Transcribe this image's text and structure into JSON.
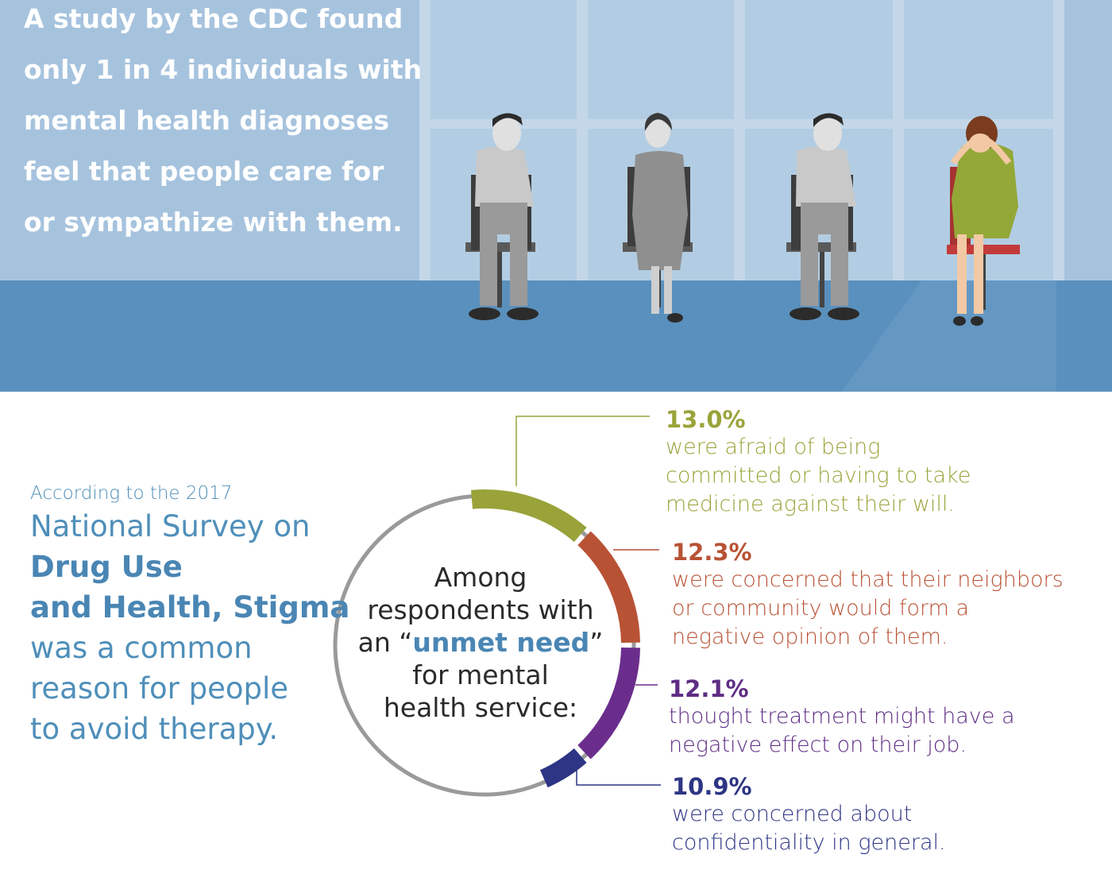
{
  "hero": {
    "lines": [
      "A study by the CDC found",
      "only 1 in 4 individuals with",
      "mental health diagnoses",
      "feel that people care for",
      "or sympathize with them."
    ]
  },
  "intro": {
    "line1": "According to the 2017",
    "line2": "National Survey on",
    "line3": "Drug Use",
    "line4": "and Health, Stigma",
    "line5": "was a common",
    "line6": "reason for people",
    "line7": "to avoid therapy."
  },
  "center": {
    "line1": "Among",
    "line2": "respondents with",
    "line3_pre": "an “",
    "line3_hl": "unmet need",
    "line3_post": "”",
    "line4": "for mental",
    "line5": "health service:"
  },
  "stats": [
    {
      "pct": "13.0%",
      "desc": [
        "were afraid of being",
        "committed or having to take",
        "medicine against their will."
      ],
      "color": "#9aa33a"
    },
    {
      "pct": "12.3%",
      "desc": [
        "were concerned that their neighbors",
        "or community would form a",
        "negative opinion of them."
      ],
      "color": "#b85234"
    },
    {
      "pct": "12.1%",
      "desc": [
        "thought treatment might have a",
        "negative effect on their job."
      ],
      "color": "#5e2c84"
    },
    {
      "pct": "10.9%",
      "desc": [
        "were concerned about",
        "confidentiality in general."
      ],
      "color": "#2d3584"
    }
  ],
  "colors": {
    "wall": "#a6c3de",
    "floor": "#5a90bd",
    "text_blue": "#4a86b4",
    "ring_gray": "#9a9a9a"
  }
}
